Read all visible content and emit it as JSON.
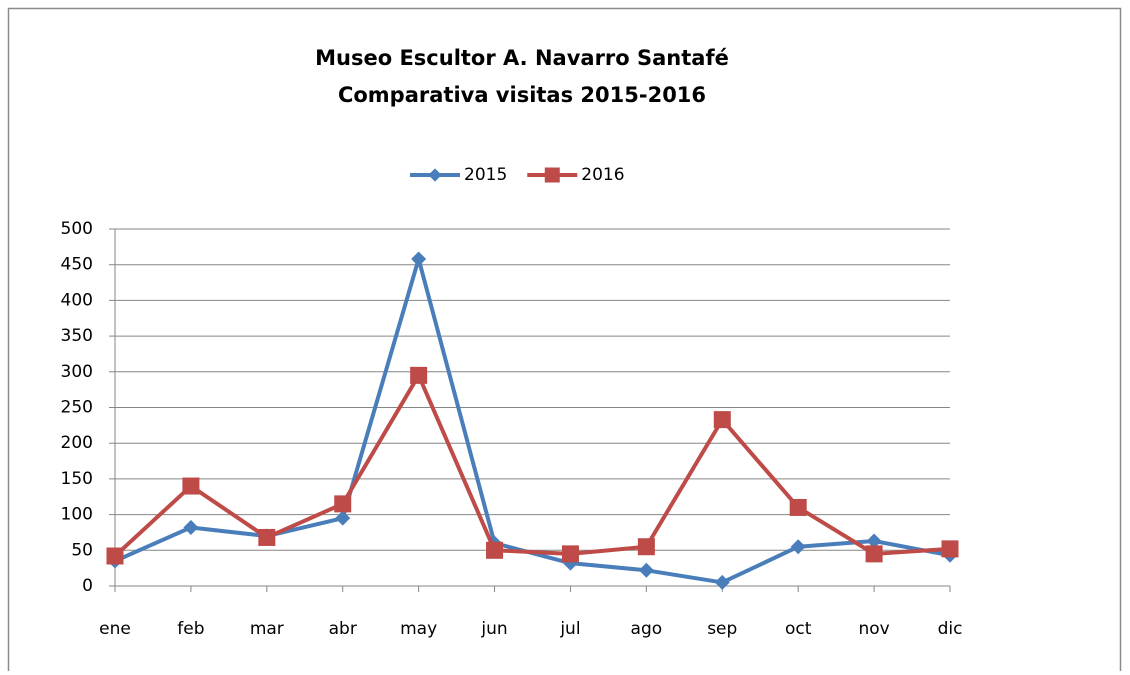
{
  "chart_data": {
    "type": "line",
    "title": [
      "Museo Escultor A. Navarro Santafé",
      "Comparativa visitas 2015-2016"
    ],
    "categories": [
      "ene",
      "feb",
      "mar",
      "abr",
      "may",
      "jun",
      "jul",
      "ago",
      "sep",
      "oct",
      "nov",
      "dic"
    ],
    "series": [
      {
        "name": "2015",
        "color": "#4a7ebb",
        "marker": "diamond",
        "values": [
          35,
          82,
          70,
          95,
          458,
          60,
          32,
          22,
          5,
          55,
          63,
          43
        ]
      },
      {
        "name": "2016",
        "color": "#be4b48",
        "marker": "square",
        "values": [
          42,
          140,
          68,
          115,
          295,
          50,
          45,
          55,
          233,
          110,
          45,
          52
        ]
      }
    ],
    "ylim": [
      0,
      500
    ],
    "yticks": [
      0,
      50,
      100,
      150,
      200,
      250,
      300,
      350,
      400,
      450,
      500
    ],
    "grid": true,
    "legend": "top"
  }
}
